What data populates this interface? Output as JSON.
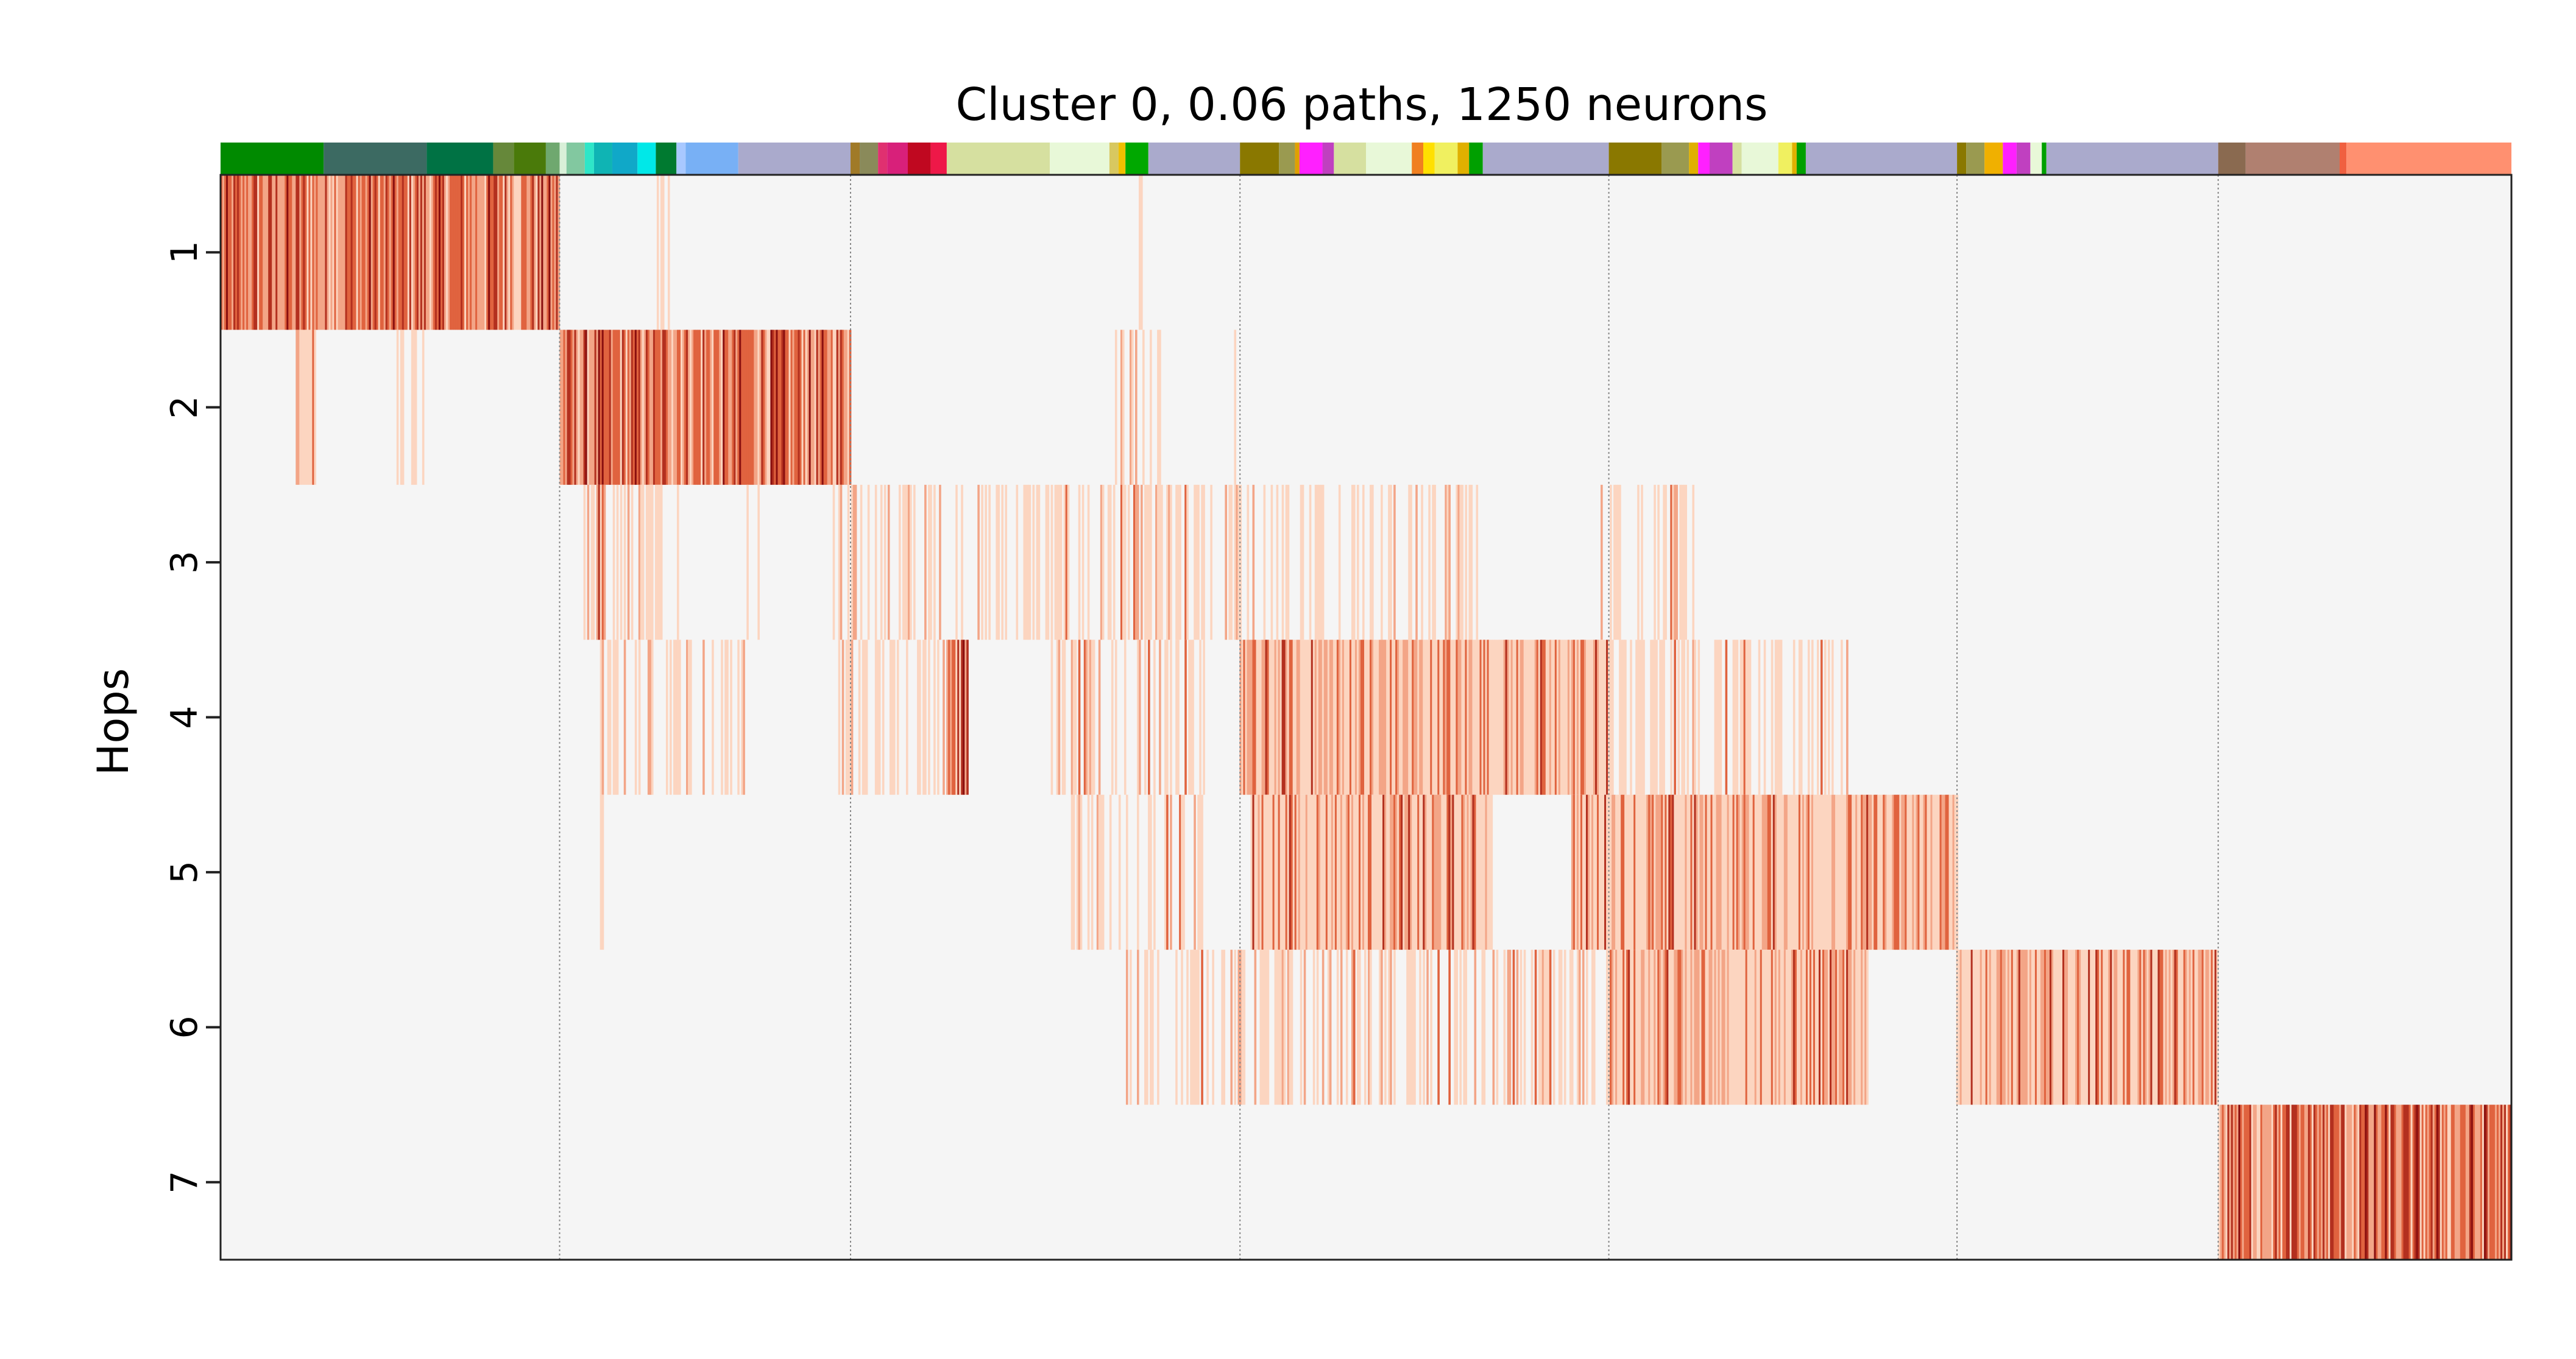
{
  "chart_data": {
    "type": "heatmap",
    "title": "Cluster 0, 0.06 paths, 1250 neurons",
    "ylabel": "Hops",
    "xlabel": "",
    "yticks": [
      "1",
      "2",
      "3",
      "4",
      "5",
      "6",
      "7"
    ],
    "n_neurons": 1250,
    "grid": false,
    "colormap": [
      "#f5f5f5",
      "#fcd5c0",
      "#f3a587",
      "#e0633f",
      "#b3301f",
      "#8a0f0f"
    ],
    "group_boundaries": [
      0,
      0.148,
      0.275,
      0.445,
      0.606,
      0.758,
      0.872,
      1.0
    ],
    "rows": [
      {
        "hop": 1,
        "spans": [
          [
            0,
            0.148,
            3
          ],
          [
            0.19,
            0.199,
            1
          ],
          [
            0.4,
            0.402,
            1
          ],
          [
            0.547,
            0.548,
            1
          ]
        ]
      },
      {
        "hop": 2,
        "spans": [
          [
            0.148,
            0.275,
            3
          ],
          [
            0.033,
            0.041,
            2
          ],
          [
            0.076,
            0.09,
            1
          ],
          [
            0.142,
            0.145,
            1
          ],
          [
            0.39,
            0.41,
            1
          ],
          [
            0.443,
            0.445,
            1
          ]
        ]
      },
      {
        "hop": 3,
        "spans": [
          [
            0.265,
            0.445,
            1
          ],
          [
            0.155,
            0.2,
            1
          ],
          [
            0.164,
            0.168,
            5
          ],
          [
            0.228,
            0.235,
            1
          ],
          [
            0.041,
            0.043,
            1
          ],
          [
            0.089,
            0.091,
            1
          ],
          [
            0.445,
            0.55,
            1
          ],
          [
            0.603,
            0.644,
            1
          ]
        ]
      },
      {
        "hop": 4,
        "spans": [
          [
            0.445,
            0.606,
            2
          ],
          [
            0.162,
            0.23,
            1
          ],
          [
            0.27,
            0.33,
            1
          ],
          [
            0.317,
            0.326,
            3
          ],
          [
            0.362,
            0.43,
            1
          ],
          [
            0.606,
            0.71,
            1
          ]
        ]
      },
      {
        "hop": 5,
        "spans": [
          [
            0.45,
            0.555,
            2
          ],
          [
            0.59,
            0.758,
            2
          ],
          [
            0.166,
            0.167,
            1
          ],
          [
            0.293,
            0.294,
            1
          ],
          [
            0.37,
            0.43,
            1
          ]
        ]
      },
      {
        "hop": 6,
        "spans": [
          [
            0.605,
            0.719,
            2
          ],
          [
            0.758,
            0.872,
            2
          ],
          [
            0.395,
            0.6,
            1
          ]
        ]
      },
      {
        "hop": 7,
        "spans": [
          [
            0.872,
            1.0,
            4
          ]
        ]
      }
    ],
    "top_bar_colors": [
      {
        "x0": 0,
        "x1": 0.045,
        "color": "#008a00"
      },
      {
        "x0": 0.045,
        "x1": 0.09,
        "color": "#3c6a62"
      },
      {
        "x0": 0.09,
        "x1": 0.119,
        "color": "#007244"
      },
      {
        "x0": 0.119,
        "x1": 0.128,
        "color": "#66883a"
      },
      {
        "x0": 0.128,
        "x1": 0.142,
        "color": "#4a7a0a"
      },
      {
        "x0": 0.142,
        "x1": 0.148,
        "color": "#6fa86f"
      },
      {
        "x0": 0.148,
        "x1": 0.151,
        "color": "#d8f0d8"
      },
      {
        "x0": 0.151,
        "x1": 0.159,
        "color": "#82c8a0"
      },
      {
        "x0": 0.159,
        "x1": 0.163,
        "color": "#2ee6c8"
      },
      {
        "x0": 0.163,
        "x1": 0.171,
        "color": "#0fb4b4"
      },
      {
        "x0": 0.171,
        "x1": 0.182,
        "color": "#10a8c8"
      },
      {
        "x0": 0.182,
        "x1": 0.19,
        "color": "#00e8e8"
      },
      {
        "x0": 0.19,
        "x1": 0.199,
        "color": "#007a30"
      },
      {
        "x0": 0.199,
        "x1": 0.203,
        "color": "#a8c8ff"
      },
      {
        "x0": 0.203,
        "x1": 0.226,
        "color": "#78b0f5"
      },
      {
        "x0": 0.226,
        "x1": 0.275,
        "color": "#aaaacc"
      },
      {
        "x0": 0.275,
        "x1": 0.279,
        "color": "#a07a28"
      },
      {
        "x0": 0.279,
        "x1": 0.287,
        "color": "#8a8a5a"
      },
      {
        "x0": 0.287,
        "x1": 0.291,
        "color": "#e03070"
      },
      {
        "x0": 0.291,
        "x1": 0.3,
        "color": "#d8207a"
      },
      {
        "x0": 0.3,
        "x1": 0.31,
        "color": "#c00820"
      },
      {
        "x0": 0.31,
        "x1": 0.317,
        "color": "#ee1848"
      },
      {
        "x0": 0.317,
        "x1": 0.362,
        "color": "#d6e0a0"
      },
      {
        "x0": 0.362,
        "x1": 0.388,
        "color": "#e8f8d8"
      },
      {
        "x0": 0.388,
        "x1": 0.392,
        "color": "#d8c860"
      },
      {
        "x0": 0.392,
        "x1": 0.395,
        "color": "#f0c000"
      },
      {
        "x0": 0.395,
        "x1": 0.405,
        "color": "#00a800"
      },
      {
        "x0": 0.405,
        "x1": 0.445,
        "color": "#aaaacc"
      },
      {
        "x0": 0.445,
        "x1": 0.462,
        "color": "#8a7800"
      },
      {
        "x0": 0.462,
        "x1": 0.469,
        "color": "#9a9a50"
      },
      {
        "x0": 0.469,
        "x1": 0.471,
        "color": "#e0a000"
      },
      {
        "x0": 0.471,
        "x1": 0.481,
        "color": "#ff20ff"
      },
      {
        "x0": 0.481,
        "x1": 0.486,
        "color": "#c040c0"
      },
      {
        "x0": 0.486,
        "x1": 0.5,
        "color": "#d6e0a0"
      },
      {
        "x0": 0.5,
        "x1": 0.52,
        "color": "#e8f8d8"
      },
      {
        "x0": 0.52,
        "x1": 0.525,
        "color": "#f08020"
      },
      {
        "x0": 0.525,
        "x1": 0.53,
        "color": "#ffe000"
      },
      {
        "x0": 0.53,
        "x1": 0.54,
        "color": "#f0f060"
      },
      {
        "x0": 0.54,
        "x1": 0.545,
        "color": "#e0b000"
      },
      {
        "x0": 0.545,
        "x1": 0.551,
        "color": "#00a000"
      },
      {
        "x0": 0.551,
        "x1": 0.606,
        "color": "#aaaacc"
      },
      {
        "x0": 0.606,
        "x1": 0.629,
        "color": "#8a7800"
      },
      {
        "x0": 0.629,
        "x1": 0.641,
        "color": "#9a9a50"
      },
      {
        "x0": 0.641,
        "x1": 0.645,
        "color": "#e0b000"
      },
      {
        "x0": 0.645,
        "x1": 0.65,
        "color": "#ff20ff"
      },
      {
        "x0": 0.65,
        "x1": 0.66,
        "color": "#c040c0"
      },
      {
        "x0": 0.66,
        "x1": 0.664,
        "color": "#d6e0a0"
      },
      {
        "x0": 0.664,
        "x1": 0.68,
        "color": "#e8f8d8"
      },
      {
        "x0": 0.68,
        "x1": 0.686,
        "color": "#f0f060"
      },
      {
        "x0": 0.686,
        "x1": 0.688,
        "color": "#e0b000"
      },
      {
        "x0": 0.688,
        "x1": 0.692,
        "color": "#00a000"
      },
      {
        "x0": 0.692,
        "x1": 0.758,
        "color": "#aaaacc"
      },
      {
        "x0": 0.758,
        "x1": 0.762,
        "color": "#8a7800"
      },
      {
        "x0": 0.762,
        "x1": 0.77,
        "color": "#9a9a50"
      },
      {
        "x0": 0.77,
        "x1": 0.778,
        "color": "#f0b000"
      },
      {
        "x0": 0.778,
        "x1": 0.784,
        "color": "#ff20ff"
      },
      {
        "x0": 0.784,
        "x1": 0.79,
        "color": "#c040c0"
      },
      {
        "x0": 0.79,
        "x1": 0.795,
        "color": "#e8f8d8"
      },
      {
        "x0": 0.795,
        "x1": 0.797,
        "color": "#00a000"
      },
      {
        "x0": 0.797,
        "x1": 0.872,
        "color": "#aaaacc"
      },
      {
        "x0": 0.872,
        "x1": 0.884,
        "color": "#8a6a50"
      },
      {
        "x0": 0.884,
        "x1": 0.925,
        "color": "#b08070"
      },
      {
        "x0": 0.925,
        "x1": 0.928,
        "color": "#f06040"
      },
      {
        "x0": 0.928,
        "x1": 1.0,
        "color": "#ff9070"
      }
    ]
  }
}
